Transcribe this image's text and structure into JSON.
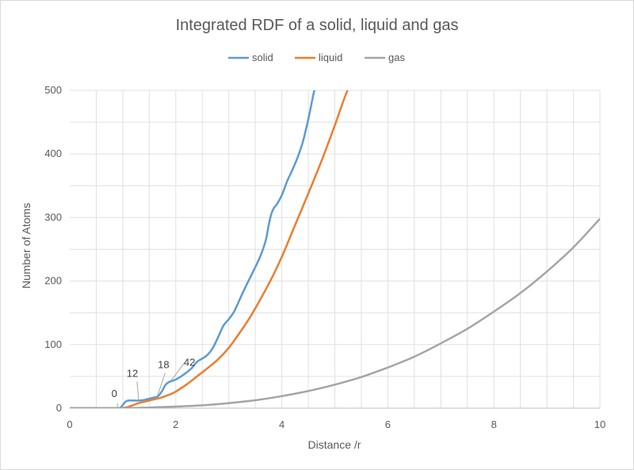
{
  "chart_data": {
    "type": "line",
    "title": "Integrated RDF of a solid, liquid and gas",
    "xlabel": "Distance /r",
    "ylabel": "Number of Atoms",
    "xlim": [
      0,
      10
    ],
    "ylim": [
      0,
      500
    ],
    "xticks": [
      0,
      2,
      4,
      6,
      8,
      10
    ],
    "yticks": [
      0,
      100,
      200,
      300,
      400,
      500
    ],
    "grid": true,
    "legend": "top",
    "series": [
      {
        "name": "solid",
        "color": "#5b9bd5",
        "x": [
          0,
          0.9,
          0.95,
          1.0,
          1.05,
          1.1,
          1.2,
          1.3,
          1.4,
          1.5,
          1.6,
          1.65,
          1.7,
          1.75,
          1.8,
          1.85,
          1.9,
          2.0,
          2.1,
          2.2,
          2.3,
          2.4,
          2.5,
          2.6,
          2.7,
          2.8,
          2.9,
          3.0,
          3.1,
          3.2,
          3.3,
          3.4,
          3.5,
          3.6,
          3.7,
          3.75,
          3.8,
          3.85,
          3.9,
          4.0,
          4.1,
          4.2,
          4.3,
          4.4,
          4.5,
          4.6,
          4.65
        ],
        "y": [
          0,
          0,
          0.5,
          5,
          10,
          12,
          12,
          12,
          13,
          15,
          17,
          18,
          22,
          28,
          36,
          40,
          42,
          45,
          50,
          56,
          63,
          73,
          78,
          84,
          95,
          112,
          130,
          140,
          152,
          170,
          188,
          205,
          222,
          240,
          265,
          287,
          305,
          315,
          320,
          335,
          357,
          375,
          395,
          420,
          455,
          495,
          510
        ]
      },
      {
        "name": "liquid",
        "color": "#ed7d31",
        "x": [
          0,
          0.9,
          1.0,
          1.1,
          1.2,
          1.3,
          1.4,
          1.5,
          1.6,
          1.7,
          1.8,
          1.9,
          2.0,
          2.2,
          2.4,
          2.6,
          2.8,
          3.0,
          3.2,
          3.4,
          3.6,
          3.8,
          4.0,
          4.2,
          4.4,
          4.6,
          4.8,
          5.0,
          5.2,
          5.35
        ],
        "y": [
          0,
          0,
          0.5,
          2,
          5,
          8,
          10,
          12,
          14,
          16,
          19,
          22,
          26,
          37,
          50,
          63,
          77,
          95,
          118,
          143,
          172,
          203,
          238,
          278,
          318,
          358,
          400,
          445,
          492,
          520
        ]
      },
      {
        "name": "gas",
        "color": "#a5a5a5",
        "x": [
          0,
          0.5,
          1.0,
          1.5,
          2.0,
          2.5,
          3.0,
          3.5,
          4.0,
          4.5,
          5.0,
          5.5,
          6.0,
          6.5,
          7.0,
          7.5,
          8.0,
          8.5,
          9.0,
          9.5,
          10.0
        ],
        "y": [
          0,
          0,
          0,
          1,
          2.5,
          4.5,
          8,
          12.5,
          19,
          27,
          37,
          49,
          64,
          81,
          102,
          125,
          152,
          181,
          215,
          253,
          298
        ]
      }
    ],
    "annotations": [
      {
        "text": "0",
        "x": 0.9,
        "y": 0
      },
      {
        "text": "12",
        "x": 1.3,
        "y": 12
      },
      {
        "text": "18",
        "x": 1.65,
        "y": 18
      },
      {
        "text": "42",
        "x": 1.9,
        "y": 42
      }
    ]
  }
}
